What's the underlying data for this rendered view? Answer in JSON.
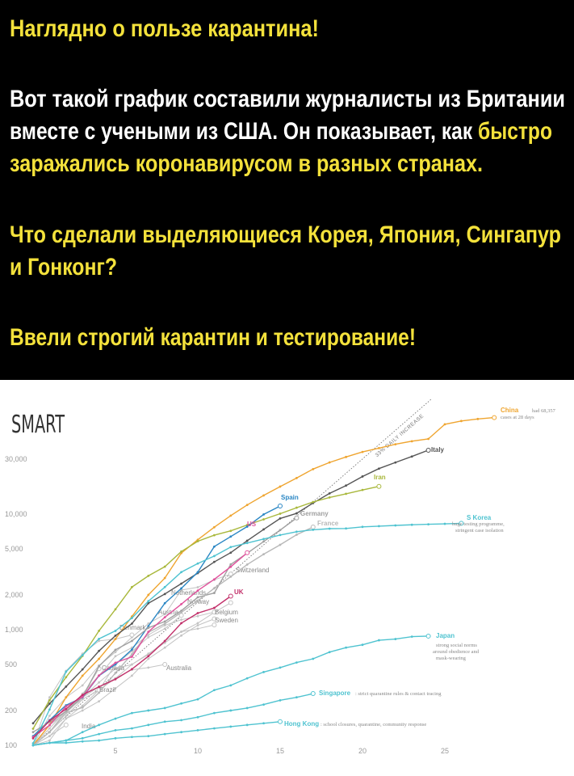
{
  "post": {
    "lines": [
      [
        {
          "text": "Наглядно о пользе карантина!",
          "color": "#f3e13b"
        }
      ],
      [
        {
          "text": "Вот такой график составили журналисты из Британии",
          "color": "#ffffff"
        }
      ],
      [
        {
          "text": "вместе с учеными из США. Он показывает, как ",
          "color": "#ffffff"
        },
        {
          "text": "быстро",
          "color": "#f3e13b"
        }
      ],
      [
        {
          "text": "заражались коронавирусом в разных странах.",
          "color": "#f3e13b"
        }
      ],
      [
        {
          "text": "Что сделали выделяющиеся Корея, Япония, Сингапур",
          "color": "#f3e13b"
        }
      ],
      [
        {
          "text": "и Гонконг?",
          "color": "#f3e13b"
        }
      ],
      [
        {
          "text": "Ввели строгий карантин и тестирование!",
          "color": "#f3e13b"
        }
      ]
    ]
  },
  "chart_data": {
    "type": "line",
    "logo": "SMART",
    "log_scale": true,
    "grid": false,
    "x": [
      0,
      1,
      2,
      3,
      4,
      5,
      6,
      7,
      8,
      9,
      10,
      11,
      12,
      13,
      14,
      15,
      16,
      17,
      18,
      19,
      20,
      21,
      22,
      23,
      24,
      25,
      26,
      27,
      28
    ],
    "xlim": [
      0,
      32.5
    ],
    "xticks": [
      5,
      10,
      15,
      20,
      25
    ],
    "ylim": [
      100,
      100000
    ],
    "yticks": [
      100,
      200,
      500,
      {
        "value": 1000,
        "label": "1,000"
      },
      {
        "value": 2000,
        "label": "2,000"
      },
      {
        "value": 5000,
        "label": "5,000"
      },
      {
        "value": 10000,
        "label": "10,000"
      },
      {
        "value": 30000,
        "label": "30,000"
      }
    ],
    "daily_increase": 33,
    "trend_label": "33% DAILY INCREASE",
    "annotations": [
      "had 68,357",
      "cases at 28 days",
      "huge testing programme,",
      "stringent case isolation",
      "strong social norms",
      "around obedience and",
      "mask-wearing",
      ": strict quarantine rules & contact tracing",
      ": school closures, quarantine, community response"
    ],
    "series": [
      {
        "name": "China",
        "color": "#efa530",
        "values": [
          100,
          150,
          260,
          400,
          560,
          830,
          1300,
          2000,
          2800,
          4600,
          6000,
          7700,
          9700,
          12000,
          14500,
          17300,
          20500,
          24500,
          28000,
          31200,
          34500,
          37200,
          40200,
          42700,
          44700,
          59800,
          63900,
          66500,
          68357
        ]
      },
      {
        "name": "Italy",
        "color": "#555555",
        "values": [
          155,
          229,
          322,
          453,
          655,
          888,
          1128,
          1694,
          2036,
          2502,
          3089,
          3858,
          4636,
          5883,
          7375,
          9172,
          10149,
          12462,
          15113,
          17660,
          21157,
          24747,
          27980,
          31506,
          35713,
          null,
          null,
          null,
          null
        ]
      },
      {
        "name": "Iran",
        "color": "#a9b83c",
        "values": [
          139,
          245,
          388,
          593,
          978,
          1501,
          2336,
          2922,
          3513,
          4747,
          5823,
          6566,
          7161,
          8042,
          9000,
          10075,
          11364,
          12729,
          13938,
          14991,
          16169,
          17361,
          null,
          null,
          null,
          null,
          null,
          null,
          null
        ]
      },
      {
        "name": "Spain",
        "color": "#2b87c4",
        "values": [
          120,
          165,
          222,
          259,
          400,
          500,
          673,
          1073,
          1695,
          2277,
          3146,
          5232,
          6391,
          7798,
          9942,
          11748,
          null,
          null,
          null,
          null,
          null,
          null,
          null,
          null,
          null,
          null,
          null,
          null,
          null
        ]
      },
      {
        "name": "Germany",
        "color": "#a0a0a0",
        "values": [
          130,
          159,
          196,
          262,
          482,
          670,
          799,
          1040,
          1176,
          1457,
          1908,
          2078,
          3675,
          4585,
          5795,
          7272,
          9257,
          null,
          null,
          null,
          null,
          null,
          null,
          null,
          null,
          null,
          null,
          null,
          null
        ]
      },
      {
        "name": "France",
        "color": "#b8b8b8",
        "values": [
          100,
          130,
          191,
          212,
          285,
          423,
          613,
          949,
          1126,
          1412,
          1784,
          2281,
          2876,
          3661,
          4499,
          5423,
          6633,
          7730,
          null,
          null,
          null,
          null,
          null,
          null,
          null,
          null,
          null,
          null,
          null
        ]
      },
      {
        "name": "US",
        "color": "#e0529c",
        "values": [
          118,
          149,
          217,
          262,
          402,
          518,
          583,
          959,
          1281,
          1663,
          2179,
          2726,
          3499,
          4632,
          null,
          null,
          null,
          null,
          null,
          null,
          null,
          null,
          null,
          null,
          null,
          null,
          null,
          null,
          null
        ]
      },
      {
        "name": "S Korea",
        "color": "#4fc3d0",
        "values": [
          104,
          204,
          433,
          602,
          833,
          977,
          1261,
          1766,
          2337,
          3150,
          3736,
          4335,
          5186,
          5621,
          6088,
          6593,
          7041,
          7314,
          7478,
          7513,
          7755,
          7869,
          7979,
          8086,
          8162,
          8236,
          8320,
          null,
          null
        ]
      },
      {
        "name": "UK",
        "color": "#c2306a",
        "values": [
          115,
          163,
          206,
          273,
          321,
          373,
          456,
          590,
          798,
          1140,
          1391,
          1543,
          1950,
          null,
          null,
          null,
          null,
          null,
          null,
          null,
          null,
          null,
          null,
          null,
          null,
          null,
          null,
          null,
          null
        ]
      },
      {
        "name": "Switzerland",
        "color": "#c4c4c4",
        "values": [
          100,
          180,
          260,
          330,
          490,
          640,
          860,
          1130,
          1360,
          2200,
          2330,
          2700,
          3030,
          null,
          null,
          null,
          null,
          null,
          null,
          null,
          null,
          null,
          null,
          null,
          null,
          null,
          null,
          null,
          null
        ]
      },
      {
        "name": "Netherlands",
        "color": "#c4c4c4",
        "values": [
          100,
          130,
          190,
          260,
          320,
          380,
          500,
          610,
          800,
          960,
          1140,
          1410,
          1710,
          null,
          null,
          null,
          null,
          null,
          null,
          null,
          null,
          null,
          null,
          null,
          null,
          null,
          null,
          null,
          null
        ]
      },
      {
        "name": "Norway",
        "color": "#c4c4c4",
        "values": [
          100,
          150,
          190,
          280,
          400,
          590,
          700,
          900,
          1090,
          1220,
          1310,
          1420,
          null,
          null,
          null,
          null,
          null,
          null,
          null,
          null,
          null,
          null,
          null,
          null,
          null,
          null,
          null,
          null,
          null
        ]
      },
      {
        "name": "Austria",
        "color": "#c4c4c4",
        "values": [
          100,
          130,
          180,
          250,
          300,
          500,
          650,
          860,
          1020,
          1330,
          null,
          null,
          null,
          null,
          null,
          null,
          null,
          null,
          null,
          null,
          null,
          null,
          null,
          null,
          null,
          null,
          null,
          null,
          null
        ]
      },
      {
        "name": "Belgium",
        "color": "#c4c4c4",
        "values": [
          100,
          110,
          170,
          200,
          240,
          310,
          400,
          560,
          700,
          890,
          1090,
          1240,
          null,
          null,
          null,
          null,
          null,
          null,
          null,
          null,
          null,
          null,
          null,
          null,
          null,
          null,
          null,
          null,
          null
        ]
      },
      {
        "name": "Sweden",
        "color": "#c4c4c4",
        "values": [
          100,
          140,
          200,
          260,
          350,
          460,
          500,
          620,
          770,
          960,
          1020,
          1100,
          null,
          null,
          null,
          null,
          null,
          null,
          null,
          null,
          null,
          null,
          null,
          null,
          null,
          null,
          null,
          null,
          null
        ]
      },
      {
        "name": "Denmark",
        "color": "#c4c4c4",
        "values": [
          100,
          260,
          440,
          620,
          800,
          830,
          900,
          null,
          null,
          null,
          null,
          null,
          null,
          null,
          null,
          null,
          null,
          null,
          null,
          null,
          null,
          null,
          null,
          null,
          null,
          null,
          null,
          null,
          null
        ]
      },
      {
        "name": "Japan",
        "color": "#4fc3d0",
        "values": [
          100,
          105,
          110,
          130,
          150,
          170,
          190,
          200,
          210,
          230,
          250,
          300,
          330,
          380,
          430,
          470,
          520,
          560,
          640,
          700,
          740,
          810,
          830,
          870,
          880,
          null,
          null,
          null,
          null
        ]
      },
      {
        "name": "Canada",
        "color": "#c4c4c4",
        "values": [
          100,
          150,
          200,
          270,
          460,
          null,
          null,
          null,
          null,
          null,
          null,
          null,
          null,
          null,
          null,
          null,
          null,
          null,
          null,
          null,
          null,
          null,
          null,
          null,
          null,
          null,
          null,
          null,
          null
        ]
      },
      {
        "name": "Australia",
        "color": "#c4c4c4",
        "values": [
          100,
          130,
          200,
          250,
          300,
          380,
          450,
          470,
          500,
          null,
          null,
          null,
          null,
          null,
          null,
          null,
          null,
          null,
          null,
          null,
          null,
          null,
          null,
          null,
          null,
          null,
          null,
          null,
          null
        ]
      },
      {
        "name": "Brazil",
        "color": "#c4c4c4",
        "values": [
          100,
          120,
          170,
          220,
          300,
          null,
          null,
          null,
          null,
          null,
          null,
          null,
          null,
          null,
          null,
          null,
          null,
          null,
          null,
          null,
          null,
          null,
          null,
          null,
          null,
          null,
          null,
          null,
          null
        ]
      },
      {
        "name": "India",
        "color": "#c4c4c4",
        "values": [
          100,
          120,
          150,
          null,
          null,
          null,
          null,
          null,
          null,
          null,
          null,
          null,
          null,
          null,
          null,
          null,
          null,
          null,
          null,
          null,
          null,
          null,
          null,
          null,
          null,
          null,
          null,
          null,
          null
        ]
      },
      {
        "name": "Singapore",
        "color": "#4fc3d0",
        "values": [
          100,
          105,
          110,
          115,
          125,
          135,
          140,
          150,
          160,
          165,
          175,
          190,
          200,
          210,
          225,
          245,
          260,
          280,
          null,
          null,
          null,
          null,
          null,
          null,
          null,
          null,
          null,
          null,
          null
        ]
      },
      {
        "name": "Hong Kong",
        "color": "#4fc3d0",
        "values": [
          100,
          105,
          105,
          108,
          110,
          115,
          118,
          120,
          125,
          130,
          135,
          140,
          145,
          150,
          155,
          160,
          null,
          null,
          null,
          null,
          null,
          null,
          null,
          null,
          null,
          null,
          null,
          null,
          null
        ]
      }
    ]
  }
}
